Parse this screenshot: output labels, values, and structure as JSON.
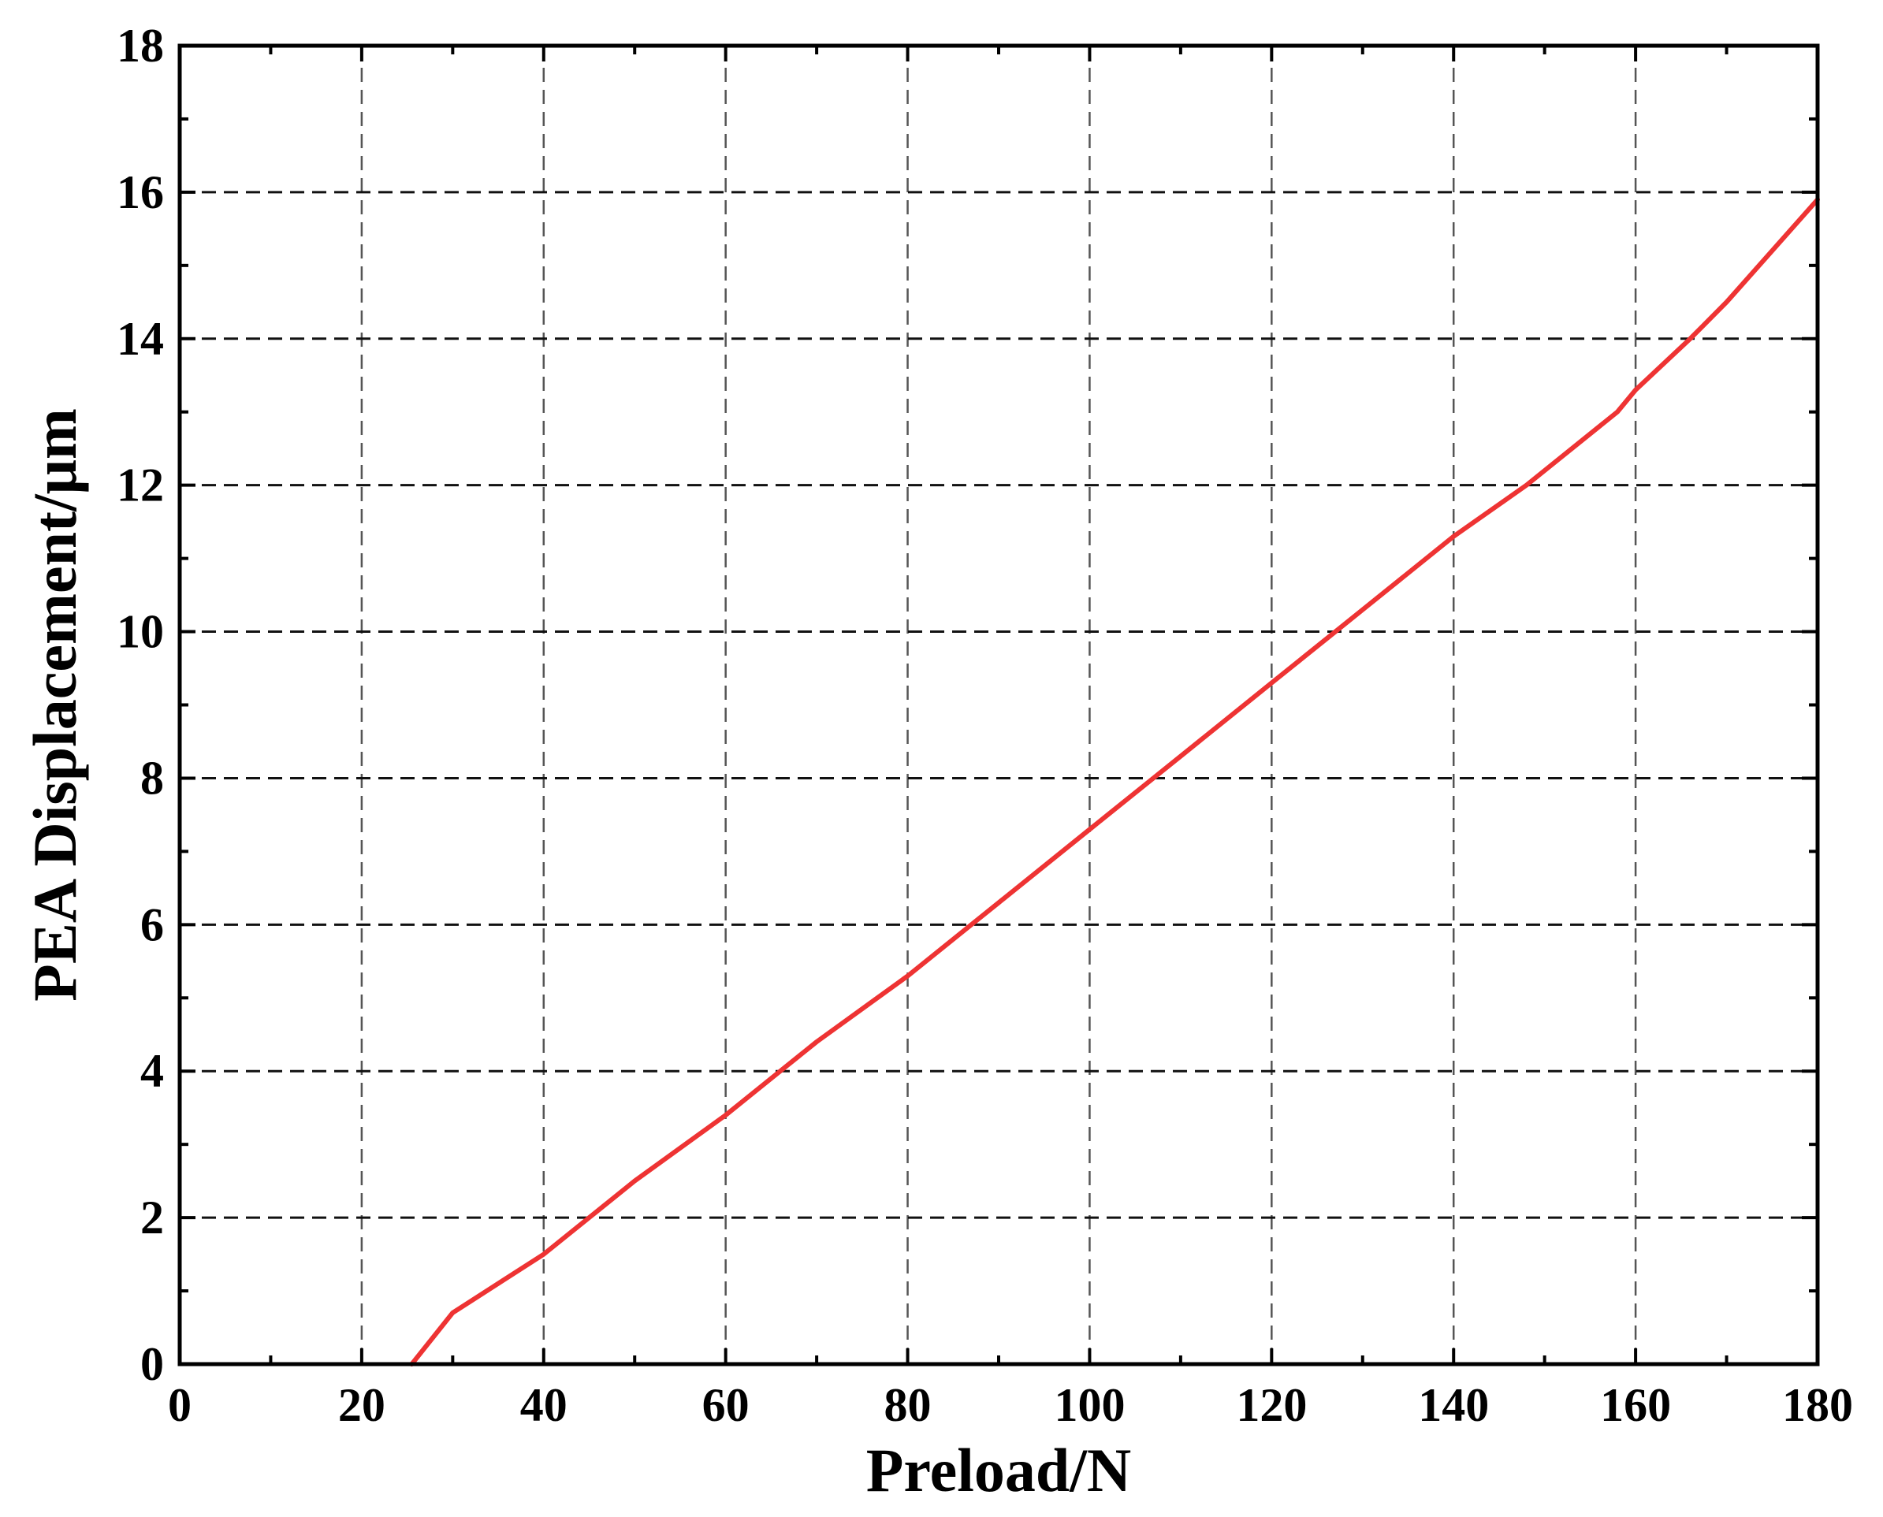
{
  "chart_data": {
    "type": "line",
    "xlabel": "Preload/N",
    "ylabel": "PEA Displacement/μm",
    "xlim": [
      0,
      180
    ],
    "ylim": [
      0,
      18
    ],
    "xticks": [
      0,
      20,
      40,
      60,
      80,
      100,
      120,
      140,
      160,
      180
    ],
    "yticks": [
      0,
      2,
      4,
      6,
      8,
      10,
      12,
      14,
      16,
      18
    ],
    "xtick_labels": [
      "0",
      "20",
      "40",
      "60",
      "80",
      "100",
      "120",
      "140",
      "160",
      "180"
    ],
    "ytick_labels": [
      "0",
      "2",
      "4",
      "6",
      "8",
      "10",
      "12",
      "14",
      "16",
      "18"
    ],
    "grid": true,
    "legend": "none",
    "line_color": "#ee3333",
    "series": [
      {
        "x": [
          25.5,
          30,
          40,
          45,
          50,
          60,
          66,
          70,
          80,
          87,
          90,
          100,
          107,
          110,
          120,
          127,
          130,
          140,
          148,
          150,
          158,
          160,
          166,
          170,
          175,
          180
        ],
        "y": [
          0,
          0.7,
          1.5,
          2.0,
          2.5,
          3.4,
          4.0,
          4.4,
          5.3,
          6.0,
          6.3,
          7.3,
          8.0,
          8.3,
          9.3,
          10.0,
          10.3,
          11.3,
          12.0,
          12.2,
          13.0,
          13.3,
          14.0,
          14.5,
          15.2,
          15.9
        ]
      }
    ]
  }
}
